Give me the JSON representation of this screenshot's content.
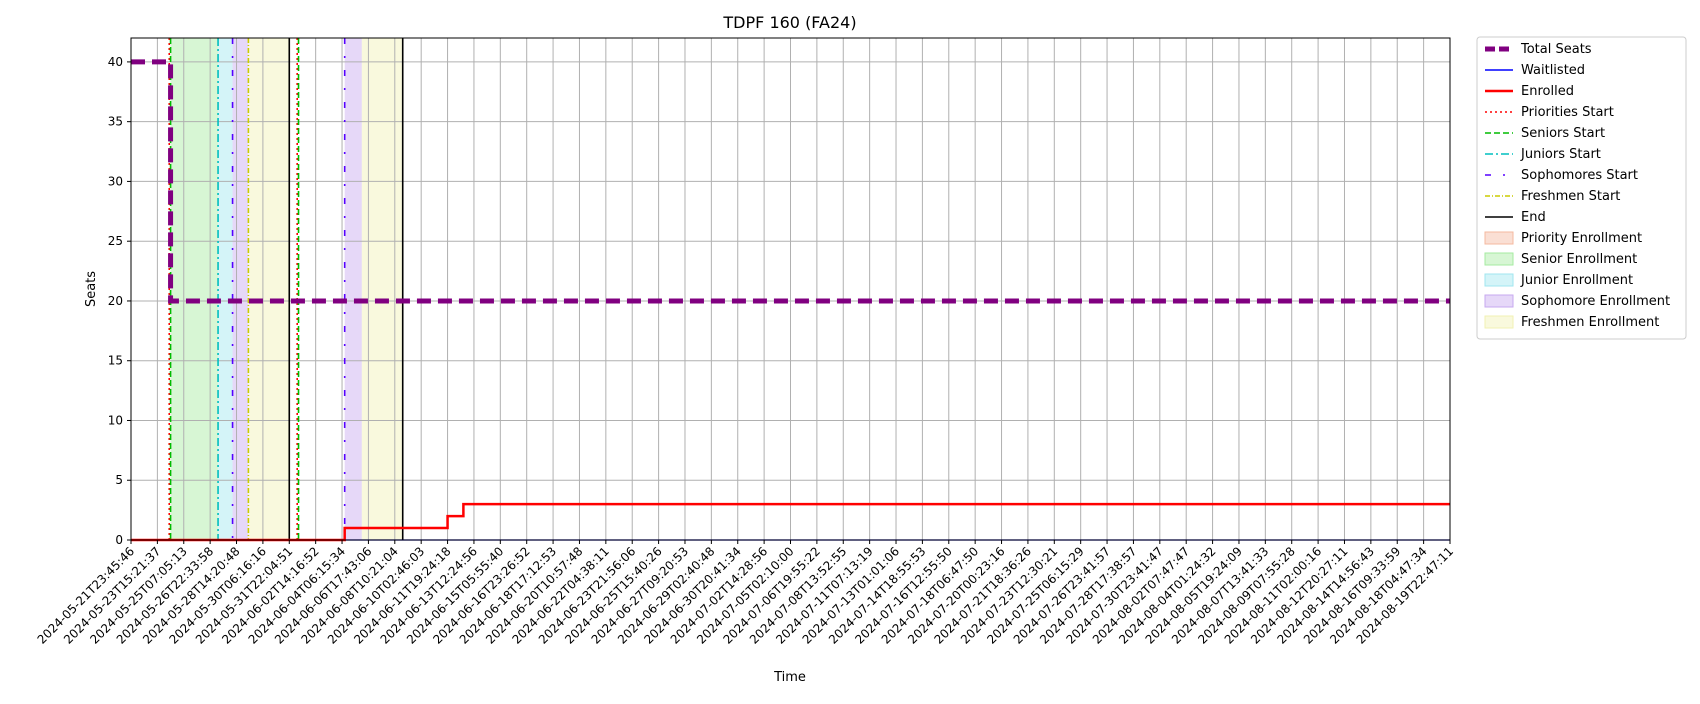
{
  "chart_data": {
    "type": "line",
    "title": "TDPF 160 (FA24)",
    "xlabel": "Time",
    "ylabel": "Seats",
    "ylim": [
      0,
      42
    ],
    "yticks": [
      0,
      5,
      10,
      15,
      20,
      25,
      30,
      35,
      40
    ],
    "grid": true,
    "legend_position": "outside-right",
    "x_tick_labels": [
      "2024-05-21T23:45:46",
      "2024-05-23T15:21:37",
      "2024-05-25T07:05:13",
      "2024-05-26T22:33:58",
      "2024-05-28T14:20:48",
      "2024-05-30T06:16:16",
      "2024-05-31T22:04:51",
      "2024-06-02T14:16:52",
      "2024-06-04T06:15:34",
      "2024-06-06T17:43:06",
      "2024-06-08T10:21:04",
      "2024-06-10T02:46:03",
      "2024-06-11T19:24:18",
      "2024-06-13T12:24:56",
      "2024-06-15T05:55:40",
      "2024-06-16T23:26:52",
      "2024-06-18T17:12:53",
      "2024-06-20T10:57:48",
      "2024-06-22T04:38:11",
      "2024-06-23T21:56:06",
      "2024-06-25T15:40:26",
      "2024-06-27T09:20:53",
      "2024-06-29T02:40:48",
      "2024-06-30T20:41:34",
      "2024-07-02T14:28:56",
      "2024-07-05T02:10:00",
      "2024-07-06T19:55:22",
      "2024-07-08T13:52:55",
      "2024-07-11T07:13:19",
      "2024-07-13T01:01:06",
      "2024-07-14T18:55:53",
      "2024-07-16T12:55:50",
      "2024-07-18T06:47:50",
      "2024-07-20T00:23:16",
      "2024-07-21T18:36:26",
      "2024-07-23T12:30:21",
      "2024-07-25T06:15:29",
      "2024-07-26T23:41:57",
      "2024-07-28T17:38:57",
      "2024-07-30T23:41:47",
      "2024-08-02T07:47:47",
      "2024-08-04T01:24:32",
      "2024-08-05T19:24:09",
      "2024-08-07T13:41:33",
      "2024-08-09T07:55:28",
      "2024-08-11T02:00:16",
      "2024-08-12T20:27:11",
      "2024-08-14T14:56:43",
      "2024-08-16T09:33:59",
      "2024-08-18T04:47:34",
      "2024-08-19T22:47:11"
    ],
    "series": [
      {
        "name": "Total Seats",
        "color": "#800080",
        "style": "dashed-thick",
        "points": [
          [
            0,
            40
          ],
          [
            1.5,
            40
          ],
          [
            1.5,
            20
          ],
          [
            50.0,
            20
          ]
        ]
      },
      {
        "name": "Waitlisted",
        "color": "#0000ff",
        "style": "solid",
        "points": [
          [
            0,
            0
          ],
          [
            50.0,
            0
          ]
        ]
      },
      {
        "name": "Enrolled",
        "color": "#ff0000",
        "style": "solid-thick",
        "points": [
          [
            0,
            0
          ],
          [
            8.1,
            0
          ],
          [
            8.1,
            1
          ],
          [
            12.0,
            1
          ],
          [
            12.0,
            2
          ],
          [
            12.6,
            2
          ],
          [
            12.6,
            3
          ],
          [
            50.0,
            3
          ]
        ]
      }
    ],
    "vertical_markers": [
      {
        "name": "Priorities Start",
        "color": "#ff0000",
        "style": "dotted",
        "x": [
          1.45,
          6.3
        ]
      },
      {
        "name": "Seniors Start",
        "color": "#00bb00",
        "style": "dashed",
        "x": [
          1.5,
          6.35
        ]
      },
      {
        "name": "Juniors Start",
        "color": "#00bfbf",
        "style": "dashdot",
        "x": [
          3.3
        ]
      },
      {
        "name": "Sophomores Start",
        "color": "#5500ff",
        "style": "dashdot-loose",
        "x": [
          3.85,
          8.1
        ]
      },
      {
        "name": "Freshmen Start",
        "color": "#cccc00",
        "style": "dashdot-dense",
        "x": [
          4.45
        ]
      },
      {
        "name": "End",
        "color": "#000000",
        "style": "solid",
        "x": [
          6.0,
          10.3
        ]
      }
    ],
    "shaded_regions": [
      {
        "name": "Priority Enrollment",
        "color": "#f4b89f",
        "ranges": []
      },
      {
        "name": "Senior Enrollment",
        "color": "#a6eba0",
        "ranges": [
          [
            1.5,
            3.3
          ]
        ]
      },
      {
        "name": "Junior Enrollment",
        "color": "#a0e6ef",
        "ranges": [
          [
            3.3,
            3.85
          ]
        ]
      },
      {
        "name": "Sophomore Enrollment",
        "color": "#c7a9ef",
        "ranges": [
          [
            3.85,
            4.45
          ],
          [
            8.1,
            8.75
          ]
        ]
      },
      {
        "name": "Freshmen Enrollment",
        "color": "#f1f1b3",
        "ranges": [
          [
            4.45,
            6.0
          ],
          [
            8.75,
            10.3
          ]
        ]
      }
    ]
  }
}
